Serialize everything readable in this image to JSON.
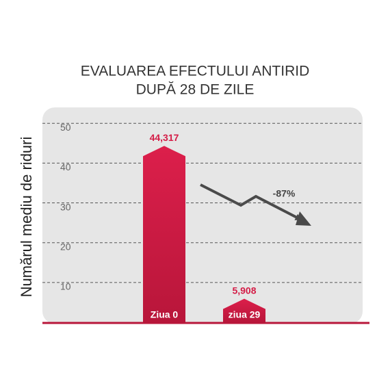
{
  "chart_data": {
    "type": "bar",
    "title": [
      "EVALUAREA EFECTULUI ANTIRID",
      "DUPĂ 28 DE ZILE"
    ],
    "ylabel": "Numărul mediu de riduri",
    "categories": [
      "Ziua 0",
      "ziua 29"
    ],
    "values": [
      44.317,
      5.908
    ],
    "value_labels": [
      "44,317",
      "5,908"
    ],
    "color": "#dc1f4b",
    "annotation": "-87%",
    "ylim": [
      0,
      54
    ],
    "yticks": [
      10,
      20,
      30,
      40,
      50
    ],
    "grid": true
  }
}
